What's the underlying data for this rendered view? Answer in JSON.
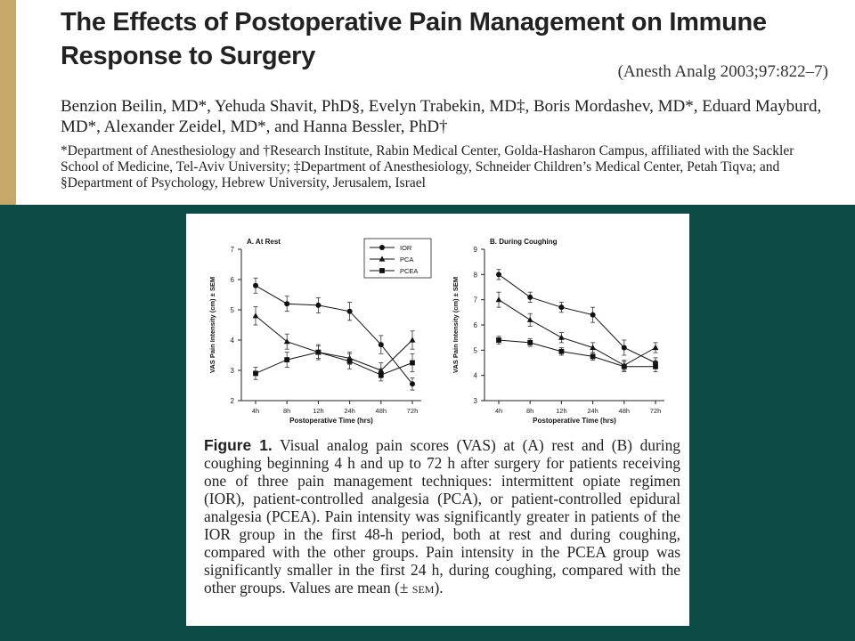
{
  "header": {
    "title": "The Effects of Postoperative Pain Management on Immune Response to Surgery",
    "citation": "(Anesth Analg 2003;97:822–7)",
    "authors": "Benzion Beilin, MD*, Yehuda Shavit, PhD§, Evelyn Trabekin, MD‡, Boris Mordashev, MD*, Eduard Mayburd, MD*, Alexander Zeidel, MD*, and Hanna Bessler, PhD†",
    "affiliations": "*Department of Anesthesiology and †Research Institute, Rabin Medical Center, Golda-Hasharon Campus, affiliated with the Sackler School of Medicine, Tel-Aviv University; ‡Department of Anesthesiology, Schneider Children’s Medical Center, Petah Tiqva; and §Department of Psychology, Hebrew University, Jerusalem, Israel"
  },
  "figure": {
    "caption_label": "Figure 1.",
    "caption_main": "Visual analog pain scores (VAS) at (A) rest and (B) during coughing beginning 4 h and up to 72 h after surgery for patients receiving one of three pain management techniques: intermittent opiate regimen (IOR), patient-controlled analgesia (PCA), or patient-controlled epidural analgesia (PCEA). Pain intensity was significantly greater in patients of the IOR group in the first 48-h period, both at rest and during coughing, compared with the other groups. Pain intensity in the PCEA group was significantly smaller in the first 24 h, during coughing, compared with the other groups. Values are mean (±",
    "caption_sem": "sem",
    "caption_end": ")."
  },
  "chart_data": [
    {
      "type": "line",
      "title": "A. At Rest",
      "xlabel": "Postoperative Time (hrs)",
      "ylabel": "VAS Pain Intensity (cm) ± SEM",
      "categories": [
        "4h",
        "8h",
        "12h",
        "24h",
        "48h",
        "72h"
      ],
      "ylim": [
        2,
        7
      ],
      "yticks": [
        2,
        3,
        4,
        5,
        6,
        7
      ],
      "legend": "top-center",
      "series": [
        {
          "name": "IOR",
          "marker": "circle",
          "values": [
            5.8,
            5.2,
            5.15,
            4.95,
            3.85,
            2.55
          ],
          "err": [
            0.25,
            0.25,
            0.25,
            0.3,
            0.3,
            0.2
          ]
        },
        {
          "name": "PCA",
          "marker": "triangle",
          "values": [
            4.8,
            3.95,
            3.6,
            3.4,
            3.0,
            4.0
          ],
          "err": [
            0.3,
            0.25,
            0.2,
            0.2,
            0.25,
            0.3
          ]
        },
        {
          "name": "PCEA",
          "marker": "square",
          "values": [
            2.9,
            3.35,
            3.6,
            3.3,
            2.85,
            3.25
          ],
          "err": [
            0.2,
            0.25,
            0.25,
            0.25,
            0.2,
            0.3
          ]
        }
      ]
    },
    {
      "type": "line",
      "title": "B. During Coughing",
      "xlabel": "Postoperative Time (hrs)",
      "ylabel": "VAS Pain Intensity (cm) ± SEM",
      "categories": [
        "4h",
        "8h",
        "12h",
        "24h",
        "48h",
        "72h"
      ],
      "ylim": [
        3,
        9
      ],
      "yticks": [
        3,
        4,
        5,
        6,
        7,
        8,
        9
      ],
      "series": [
        {
          "name": "IOR",
          "marker": "circle",
          "values": [
            8.0,
            7.1,
            6.7,
            6.4,
            5.1,
            4.5
          ],
          "err": [
            0.2,
            0.2,
            0.2,
            0.3,
            0.3,
            0.2
          ]
        },
        {
          "name": "PCA",
          "marker": "triangle",
          "values": [
            7.0,
            6.2,
            5.5,
            5.1,
            4.4,
            5.1
          ],
          "err": [
            0.3,
            0.25,
            0.2,
            0.2,
            0.2,
            0.2
          ]
        },
        {
          "name": "PCEA",
          "marker": "square",
          "values": [
            5.4,
            5.3,
            4.95,
            4.75,
            4.35,
            4.35
          ],
          "err": [
            0.15,
            0.15,
            0.15,
            0.15,
            0.2,
            0.2
          ]
        }
      ]
    }
  ]
}
